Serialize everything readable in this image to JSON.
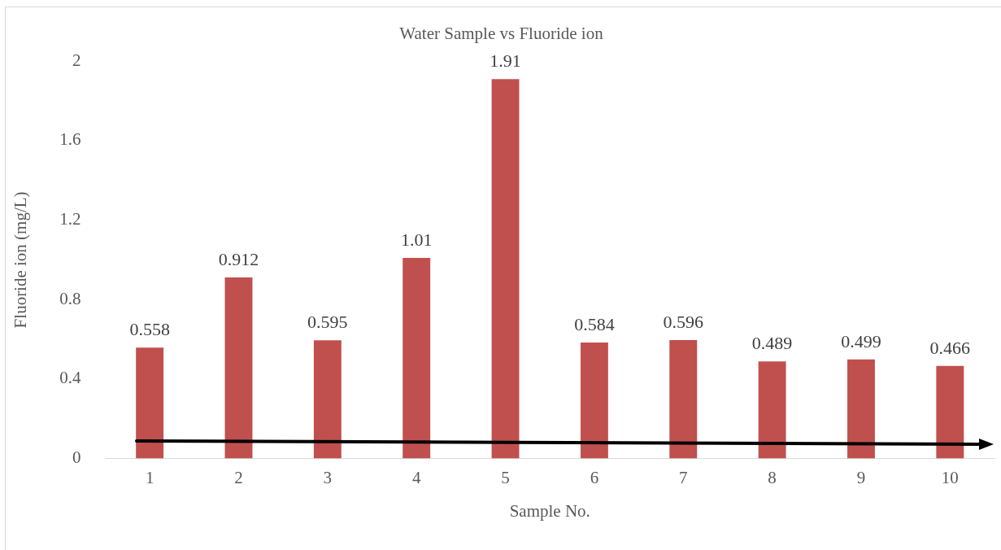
{
  "chart_data": {
    "type": "bar",
    "title": "Water Sample vs Fluoride ion",
    "xlabel": "Sample No.",
    "ylabel": "Fluoride ion (mg/L)",
    "categories": [
      "1",
      "2",
      "3",
      "4",
      "5",
      "6",
      "7",
      "8",
      "9",
      "10"
    ],
    "values": [
      0.558,
      0.912,
      0.595,
      1.01,
      1.91,
      0.584,
      0.596,
      0.489,
      0.499,
      0.466
    ],
    "color": "#c0504d",
    "ylim": [
      0,
      2
    ],
    "yticks": [
      0,
      0.4,
      0.8,
      1.2,
      1.6,
      2
    ],
    "grid": false,
    "legend": false,
    "data_labels": true
  }
}
